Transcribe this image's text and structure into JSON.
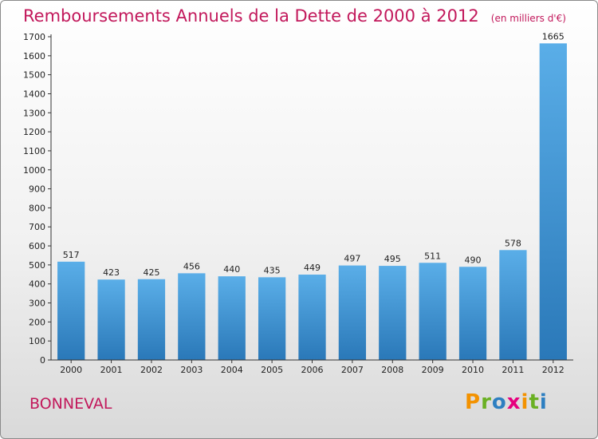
{
  "colors": {
    "title": "#c2185b",
    "bar_top": "#5aaee8",
    "bar_bottom": "#2a78b8",
    "axis": "#333333",
    "grid": "#d0d0d0"
  },
  "footer": {
    "place": "BONNEVAL",
    "logo_letters": [
      {
        "char": "P",
        "color": "#f39200"
      },
      {
        "char": "r",
        "color": "#6ab023"
      },
      {
        "char": "o",
        "color": "#2d7fc1"
      },
      {
        "char": "x",
        "color": "#e6007e"
      },
      {
        "char": "i",
        "color": "#f39200"
      },
      {
        "char": "t",
        "color": "#6ab023"
      },
      {
        "char": "i",
        "color": "#2d7fc1"
      }
    ]
  },
  "chart_data": {
    "type": "bar",
    "title": "Remboursements Annuels de la Dette de 2000 à 2012",
    "unit_note": "(en milliers d'€)",
    "categories": [
      "2000",
      "2001",
      "2002",
      "2003",
      "2004",
      "2005",
      "2006",
      "2007",
      "2008",
      "2009",
      "2010",
      "2011",
      "2012"
    ],
    "values": [
      517,
      423,
      425,
      456,
      440,
      435,
      449,
      497,
      495,
      511,
      490,
      578,
      1665
    ],
    "ylim": [
      0,
      1700
    ],
    "ytick_step": 100,
    "grid": false,
    "legend": "none",
    "xlabel": "",
    "ylabel": ""
  }
}
